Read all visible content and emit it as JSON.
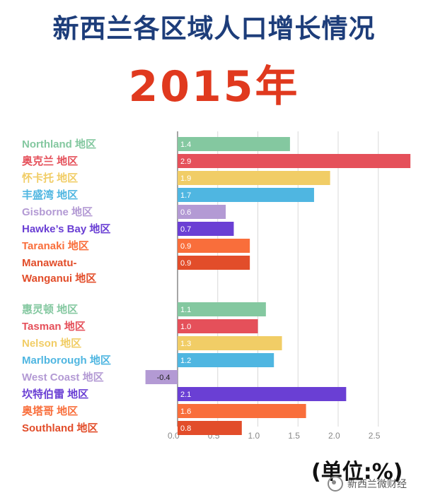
{
  "title": "新西兰各区域人口增长情况",
  "subtitle": "2015年",
  "unit_label": "(单位:%)",
  "watermark": "新西兰微财经",
  "chart_data": {
    "type": "bar",
    "orientation": "horizontal",
    "xlim": [
      -0.25,
      2.8
    ],
    "xticks": [
      "0.0",
      "0.5",
      "1.0",
      "1.5",
      "2.0",
      "2.5"
    ],
    "grid": true,
    "bars": [
      {
        "label": "Northland 地区",
        "value": 1.4,
        "color": "#84c8a0"
      },
      {
        "label": "奥克兰 地区",
        "value": 2.9,
        "color": "#e5505a"
      },
      {
        "label": "怀卡托 地区",
        "value": 1.9,
        "color": "#f1cd66"
      },
      {
        "label": "丰盛湾 地区",
        "value": 1.7,
        "color": "#4fb6e1"
      },
      {
        "label": "Gisborne 地区",
        "value": 0.6,
        "color": "#b39ad4"
      },
      {
        "label": "Hawke’s Bay 地区",
        "value": 0.7,
        "color": "#6a3fd4"
      },
      {
        "label": "Taranaki 地区",
        "value": 0.9,
        "color": "#f96e3b"
      },
      {
        "label": "Manawatu-Wanganui 地区",
        "value": 0.9,
        "color": "#e24d2a"
      },
      {
        "label": "惠灵顿 地区",
        "value": 1.1,
        "color": "#84c8a0"
      },
      {
        "label": "Tasman 地区",
        "value": 1.0,
        "color": "#e5505a"
      },
      {
        "label": "Nelson 地区",
        "value": 1.3,
        "color": "#f1cd66"
      },
      {
        "label": "Marlborough 地区",
        "value": 1.2,
        "color": "#4fb6e1"
      },
      {
        "label": "West Coast 地区",
        "value": -0.4,
        "color": "#b39ad4"
      },
      {
        "label": "坎特伯雷 地区",
        "value": 2.1,
        "color": "#6a3fd4"
      },
      {
        "label": "奥塔哥 地区",
        "value": 1.6,
        "color": "#f96e3b"
      },
      {
        "label": "Southland 地区",
        "value": 0.8,
        "color": "#e24d2a"
      }
    ]
  }
}
